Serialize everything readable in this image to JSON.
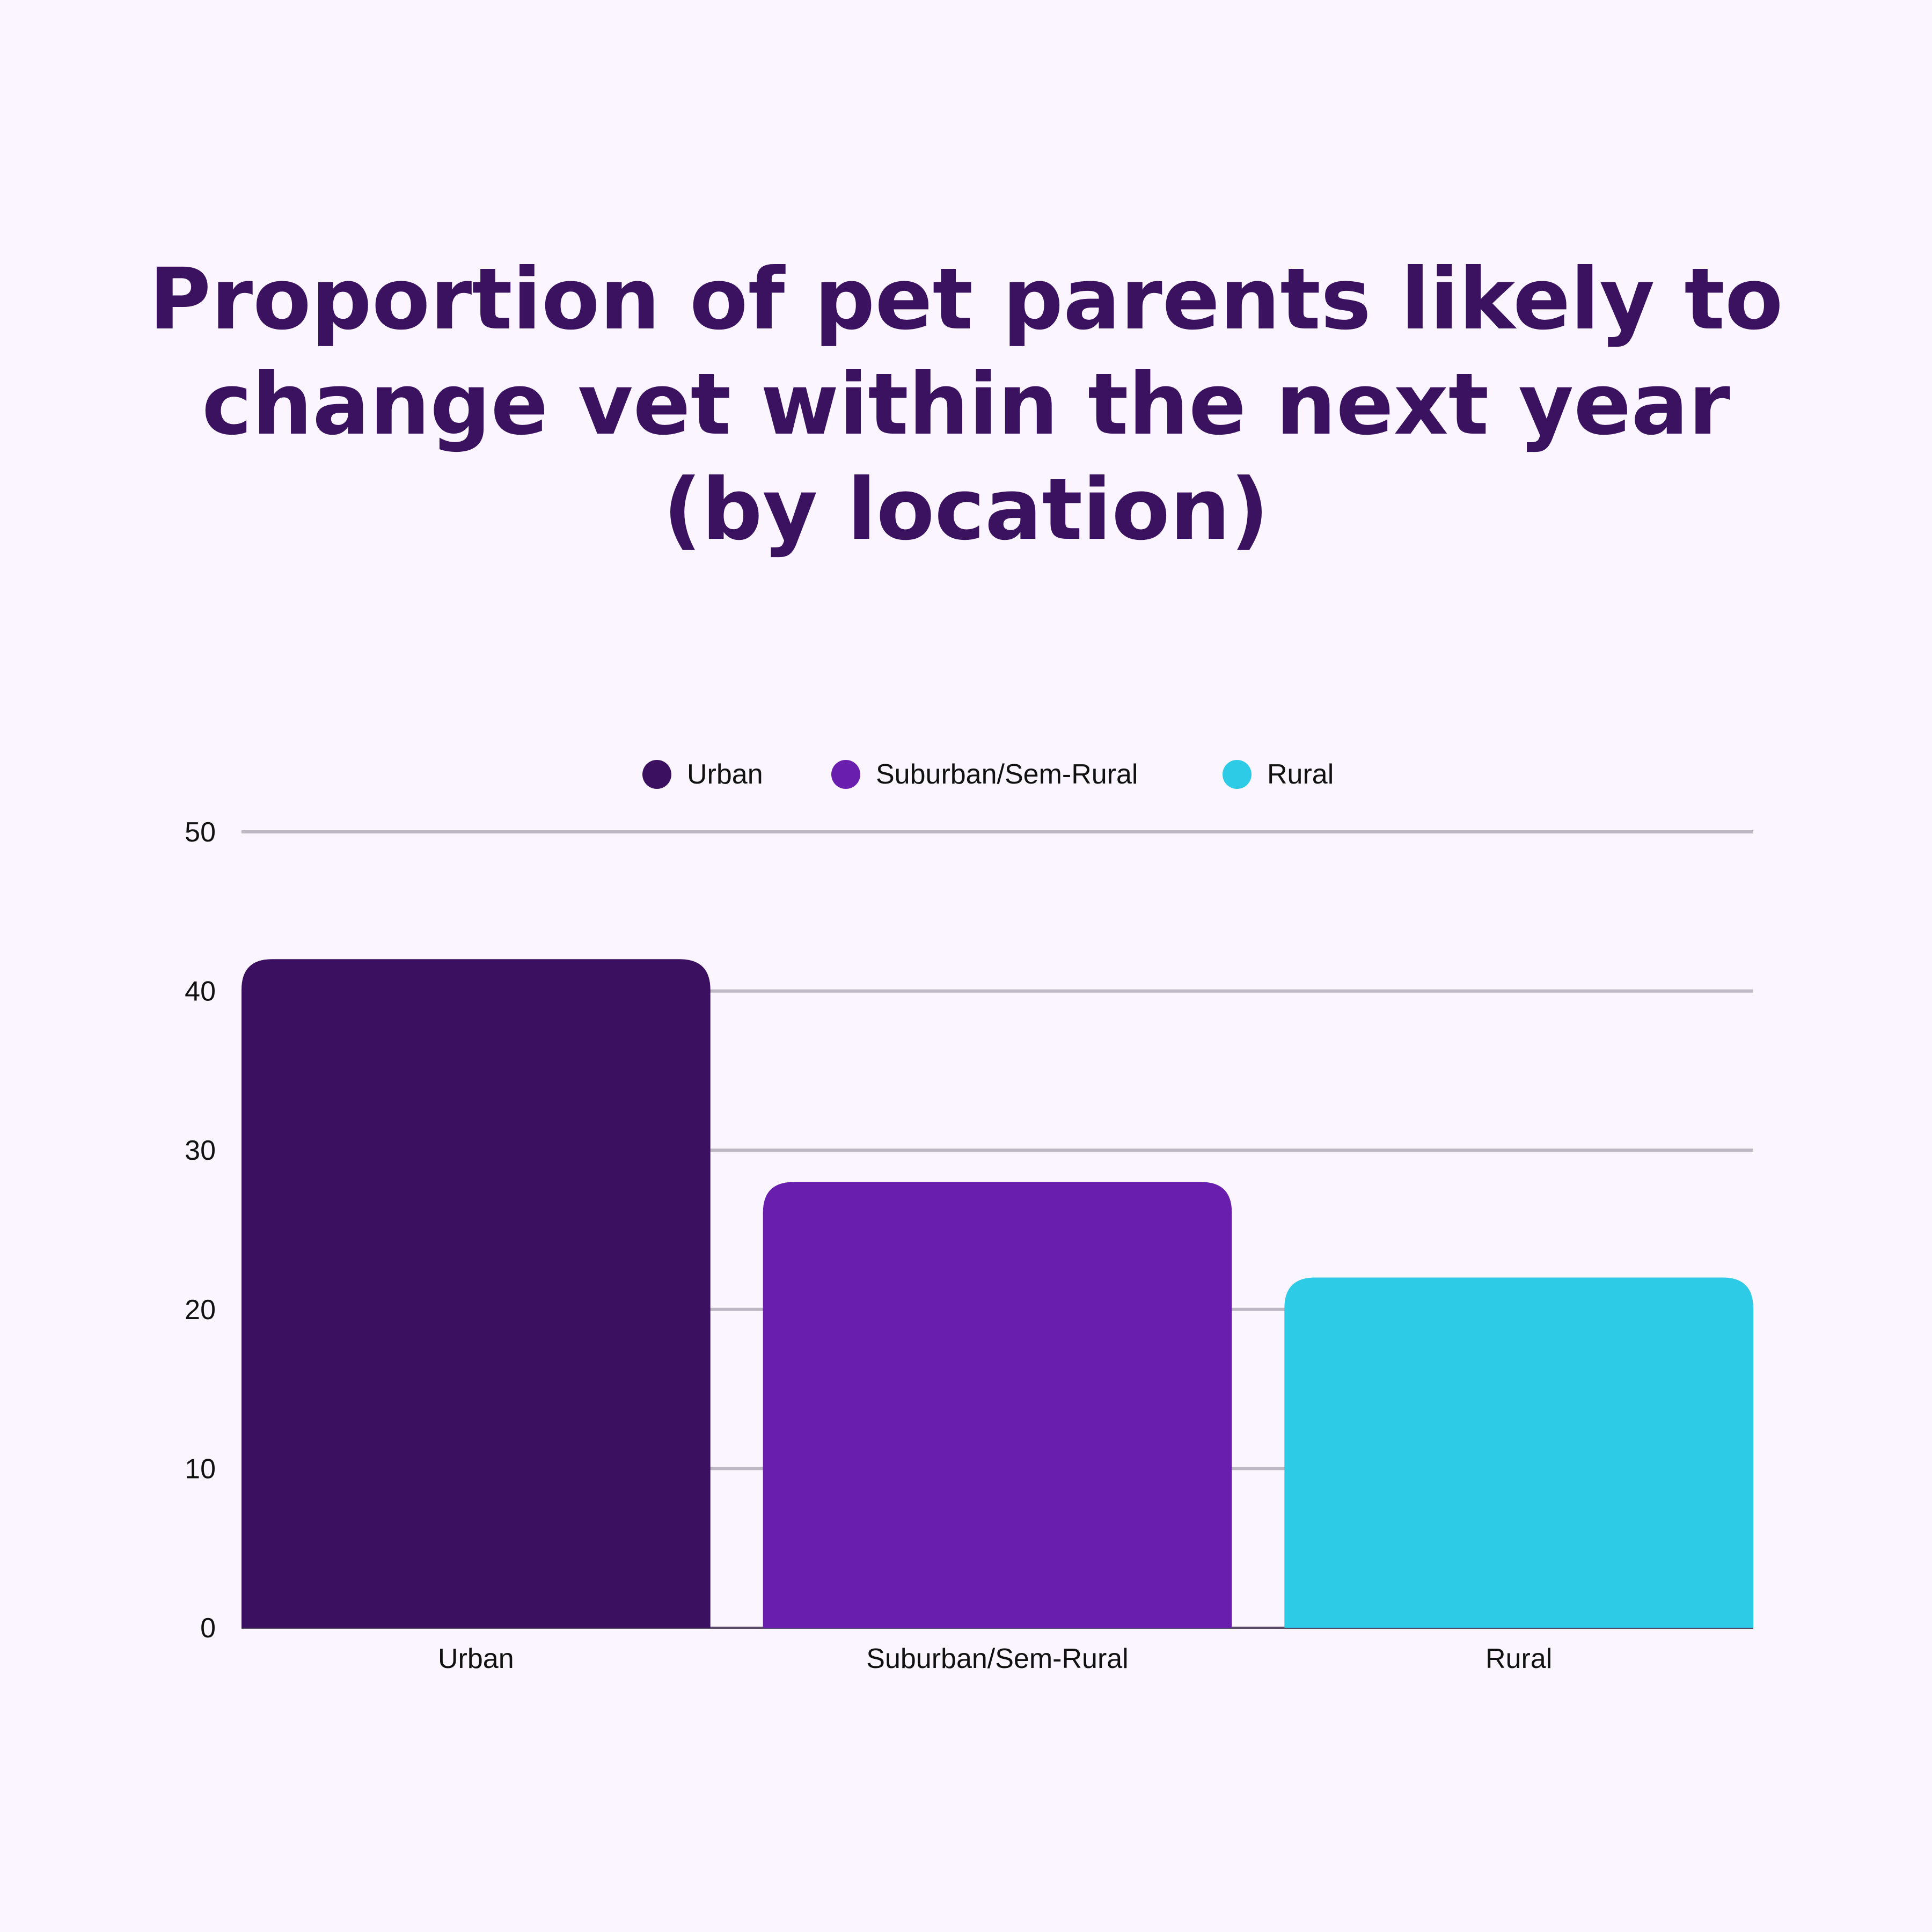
{
  "chart_data": {
    "type": "bar",
    "title": "Proportion of pet parents likely to change vet within the next year (by location)",
    "title_lines": [
      "Proportion of pet parents likely to",
      "change vet within the next year",
      "(by location)"
    ],
    "categories": [
      "Urban",
      "Suburban/Sem-Rural",
      "Rural"
    ],
    "values": [
      42,
      28,
      22
    ],
    "colors": [
      "#3b1060",
      "#6a1eae",
      "#2ecbe6"
    ],
    "legend": [
      "Urban",
      "Suburban/Sem-Rural",
      "Rural"
    ],
    "legend_placement": "top",
    "ylim": [
      0,
      50
    ],
    "yticks": [
      0,
      10,
      20,
      30,
      40,
      50
    ],
    "grid": true,
    "xlabel": "",
    "ylabel": ""
  }
}
